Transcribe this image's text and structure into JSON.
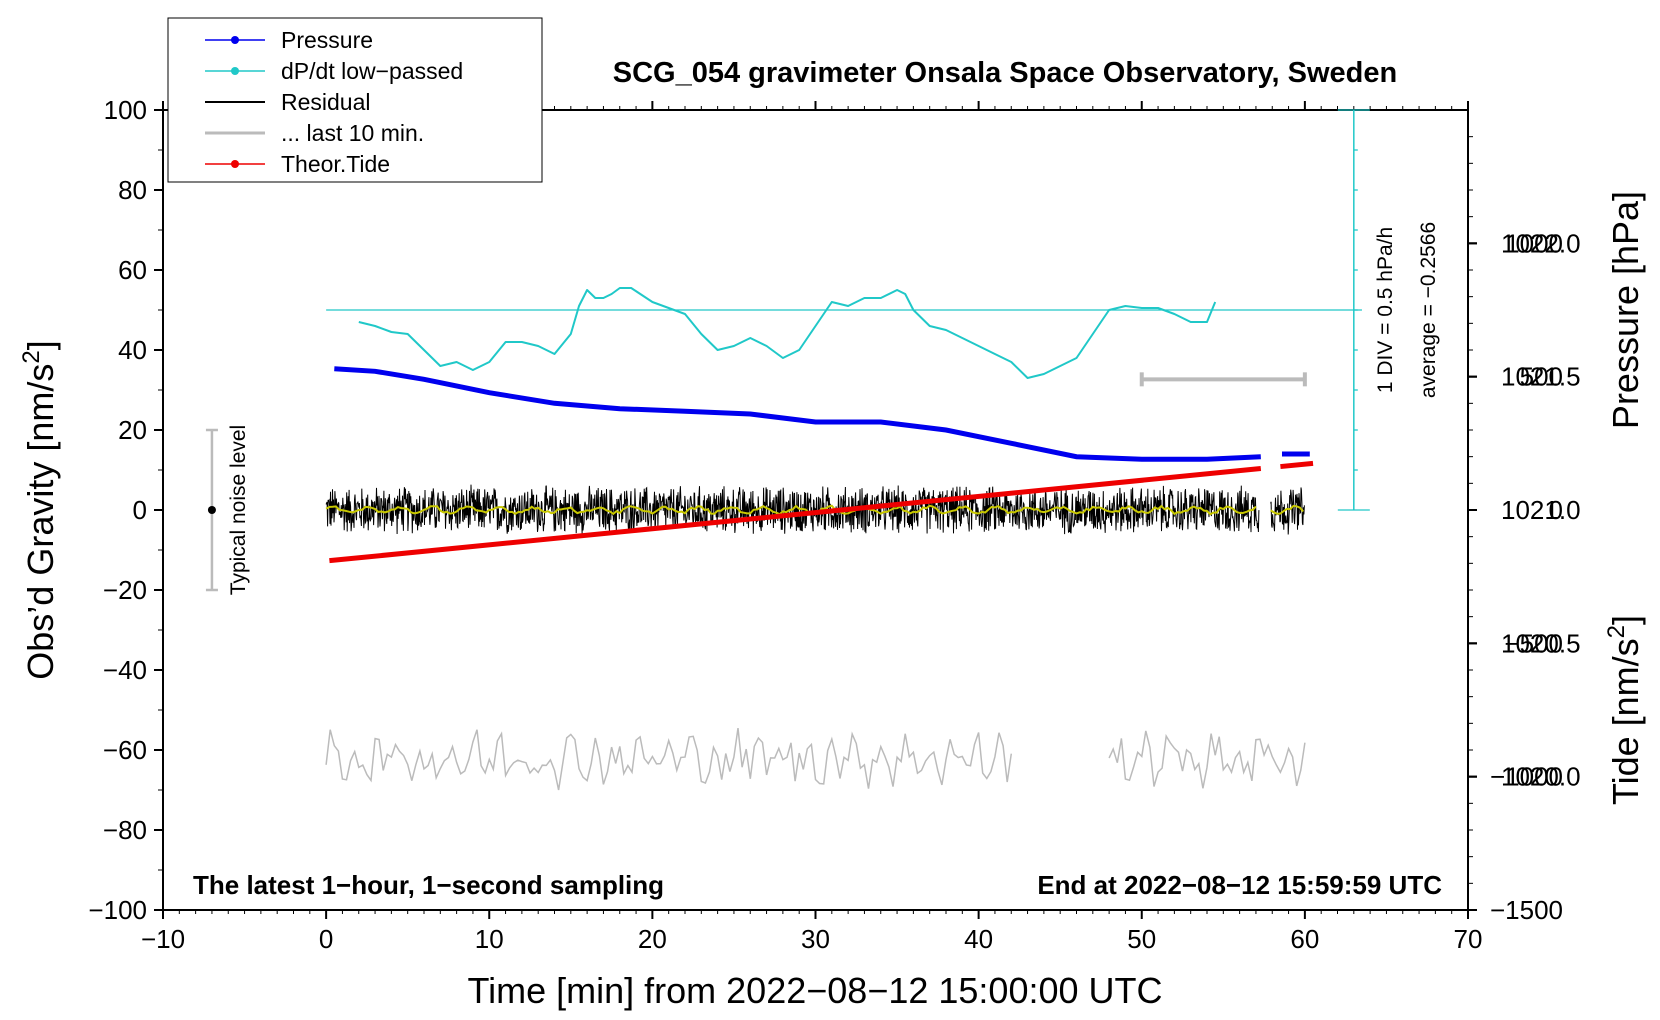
{
  "chart_data": {
    "type": "line",
    "title": "SCG_054 gravimeter Onsala Space Observatory, Sweden",
    "xlabel": "Time [min] from 2022−08−12 15:00:00 UTC",
    "ylabel_left": "Obs’d Gravity [nm/s",
    "ylabel_left_sup": "2",
    "ylabel_left_end": "]",
    "ylabel_right_pressure": "Pressure [hPa]",
    "ylabel_right_tide": "Tide [nm/s",
    "ylabel_right_tide_sup": "2",
    "ylabel_right_tide_end": "]",
    "xlim": [
      -10,
      70
    ],
    "ylim_left": [
      -100,
      100
    ],
    "pressure_lim": [
      1019.5,
      1022.5
    ],
    "tide_lim": [
      -1500,
      1500
    ],
    "x_ticks": [
      "−10",
      "0",
      "10",
      "20",
      "30",
      "40",
      "50",
      "60",
      "70"
    ],
    "y_left_ticks": [
      "100",
      "80",
      "60",
      "40",
      "20",
      "0",
      "−20",
      "−40",
      "−60",
      "−80",
      "−100"
    ],
    "y_pressure_ticks": [
      "1022.0",
      "1021.5",
      "1021.0",
      "1020.5",
      "1020.0"
    ],
    "y_tide_ticks": [
      "1000",
      "500",
      "0",
      "−500",
      "−1000",
      "−1500"
    ],
    "legend": {
      "position": "top-left",
      "entries": [
        "Pressure",
        "dP/dt low−passed",
        "Residual",
        "... last 10 min.",
        "Theor.Tide"
      ]
    },
    "annotations": {
      "noise_label": "Typical noise level",
      "div_label": "1 DIV = 0.5 hPa/h",
      "average_label": "average = −0.2566",
      "bottom_left": "The latest 1−hour, 1−second sampling",
      "bottom_right": "End at 2022−08−12 15:59:59 UTC"
    },
    "typical_noise": {
      "x": -7,
      "center": 0,
      "range": [
        -20,
        20
      ]
    },
    "series": [
      {
        "name": "Pressure",
        "axis": "pressure",
        "color": "#0000ee",
        "x": [
          0.5,
          3,
          6,
          10,
          14,
          18,
          22,
          26,
          30,
          34,
          38,
          42,
          46,
          50,
          54,
          57.3
        ],
        "y": [
          1021.53,
          1021.52,
          1021.49,
          1021.44,
          1021.4,
          1021.38,
          1021.37,
          1021.36,
          1021.33,
          1021.33,
          1021.3,
          1021.25,
          1021.2,
          1021.19,
          1021.19,
          1021.2
        ],
        "x2": [
          58.6,
          60.3
        ],
        "y2": [
          1021.21,
          1021.21
        ]
      },
      {
        "name": "dP/dt low−passed",
        "axis": "left",
        "color": "#20c8c8",
        "x": [
          2,
          3,
          4,
          5,
          6,
          7,
          8,
          9,
          10,
          11,
          12,
          13,
          14,
          15,
          15.5,
          16,
          16.5,
          17,
          17.5,
          18,
          18.7,
          20,
          22,
          23,
          24,
          25,
          26,
          27,
          28,
          29,
          30,
          31,
          32,
          33,
          34,
          35,
          35.5,
          36,
          37,
          38,
          39,
          40,
          41,
          42,
          43,
          44,
          45,
          46,
          47,
          48,
          49,
          50,
          51,
          52,
          53,
          54,
          54.5
        ],
        "y": [
          47,
          46,
          44.5,
          44,
          40,
          36,
          37,
          35,
          37,
          42,
          42,
          41,
          39,
          44,
          51,
          55,
          53,
          53,
          54,
          55.5,
          55.5,
          52,
          49,
          44,
          40,
          41,
          43,
          41,
          38,
          40,
          46,
          52,
          51,
          53,
          53,
          55,
          54,
          50,
          46,
          45,
          43,
          41,
          39,
          37,
          33,
          34,
          36,
          38,
          44,
          50,
          51,
          50.5,
          50.5,
          49,
          47,
          47,
          52
        ]
      },
      {
        "name": "Residual",
        "axis": "left",
        "color": "#000000",
        "segments": [
          [
            0,
            57.2
          ],
          [
            57.9,
            60
          ]
        ],
        "center": 0,
        "amplitude": 6
      },
      {
        "name": "Residual smoothed",
        "axis": "left",
        "color": "#c8c800",
        "segments": [
          [
            0,
            57.2
          ],
          [
            57.9,
            60
          ]
        ],
        "center": 0
      },
      {
        "name": "... last 10 min.",
        "axis": "left",
        "color": "#bbbbbb",
        "segments": [
          [
            0,
            42
          ],
          [
            48,
            60
          ]
        ],
        "center": -62,
        "amplitude": 5
      },
      {
        "name": "Theor.Tide",
        "axis": "tide",
        "color": "#ee0000",
        "x": [
          0.2,
          60.5
        ],
        "y": [
          -190,
          175
        ],
        "gap": [
          57.3,
          58.5
        ]
      }
    ],
    "pressure_reference_line": {
      "y_left": 50
    },
    "div_scale": {
      "x": 63,
      "from": 0,
      "to": 100,
      "divisions": 10
    },
    "last10_bar": {
      "x_from": 50,
      "x_to": 60,
      "y_tide": 490
    }
  }
}
